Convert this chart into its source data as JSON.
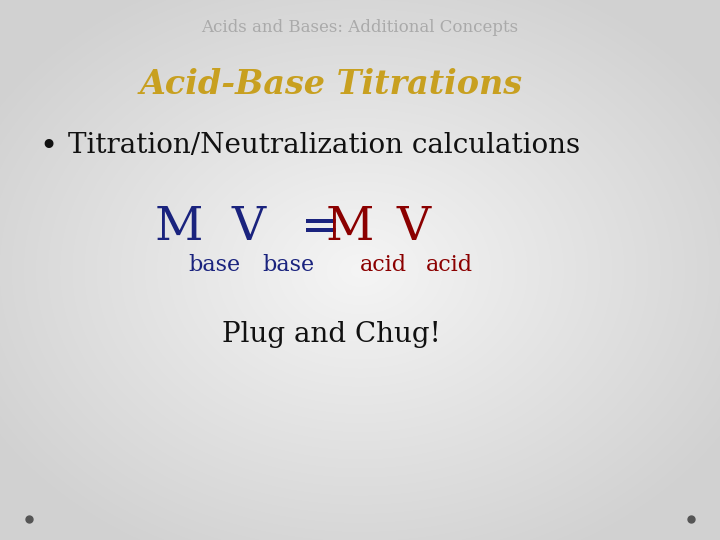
{
  "title": "Acids and Bases: Additional Concepts",
  "title_color": "#aaaaaa",
  "title_fontsize": 12,
  "heading": "Acid-Base Titrations",
  "heading_color": "#c8a020",
  "heading_fontsize": 24,
  "bullet_text": "Titration/Neutralization calculations",
  "bullet_color": "#111111",
  "bullet_fontsize": 20,
  "formula_color_base": "#1a237e",
  "formula_color_acid": "#8b0000",
  "formula_fontsize_large": 34,
  "formula_fontsize_sub": 16,
  "plug_text": "Plug and Chug!",
  "plug_color": "#111111",
  "plug_fontsize": 20,
  "dot_color": "#555555"
}
